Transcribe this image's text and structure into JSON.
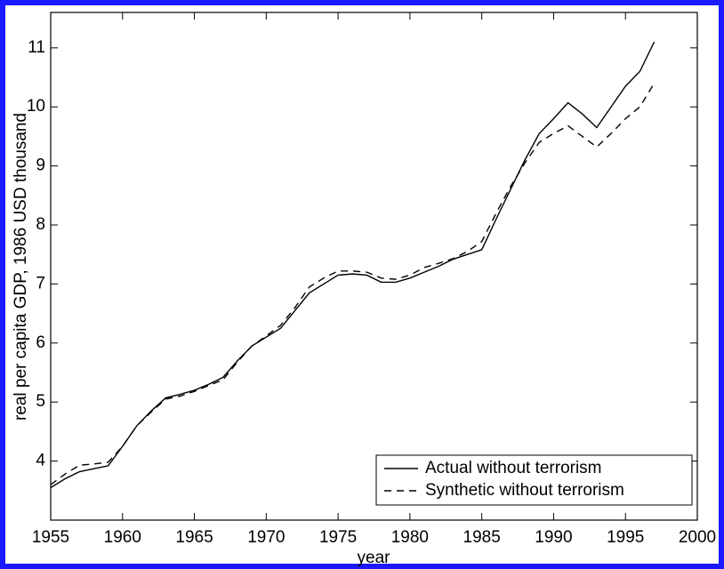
{
  "chart_data": {
    "type": "line",
    "xlabel": "year",
    "ylabel": "real per capita GDP, 1986 USD thousand",
    "x": [
      1955,
      1956,
      1957,
      1958,
      1959,
      1960,
      1961,
      1962,
      1963,
      1964,
      1965,
      1966,
      1967,
      1968,
      1969,
      1970,
      1971,
      1972,
      1973,
      1974,
      1975,
      1976,
      1977,
      1978,
      1979,
      1980,
      1981,
      1982,
      1983,
      1984,
      1985,
      1986,
      1987,
      1988,
      1989,
      1990,
      1991,
      1992,
      1993,
      1994,
      1995,
      1996,
      1997
    ],
    "series": [
      {
        "name": "Actual without terrorism",
        "color": "#000000",
        "linestyle": "solid",
        "values": [
          3.55,
          3.7,
          3.82,
          3.87,
          3.92,
          4.25,
          4.6,
          4.85,
          5.07,
          5.13,
          5.2,
          5.3,
          5.42,
          5.7,
          5.95,
          6.1,
          6.25,
          6.55,
          6.85,
          7.0,
          7.15,
          7.17,
          7.15,
          7.03,
          7.03,
          7.1,
          7.2,
          7.3,
          7.42,
          7.5,
          7.58,
          8.1,
          8.6,
          9.1,
          9.55,
          9.8,
          10.07,
          9.88,
          9.65,
          10.0,
          10.35,
          10.6,
          11.1
        ]
      },
      {
        "name": "Synthetic without terrorism",
        "color": "#000000",
        "linestyle": "dashed",
        "values": [
          3.6,
          3.78,
          3.93,
          3.95,
          3.98,
          4.25,
          4.6,
          4.83,
          5.05,
          5.1,
          5.18,
          5.28,
          5.38,
          5.68,
          5.95,
          6.12,
          6.3,
          6.6,
          6.95,
          7.1,
          7.22,
          7.22,
          7.2,
          7.1,
          7.08,
          7.15,
          7.28,
          7.35,
          7.43,
          7.55,
          7.72,
          8.2,
          8.65,
          9.05,
          9.4,
          9.55,
          9.68,
          9.5,
          9.32,
          9.55,
          9.8,
          10.0,
          10.4
        ]
      }
    ],
    "xlim": [
      1955,
      2000
    ],
    "xticks": [
      1955,
      1960,
      1965,
      1970,
      1975,
      1980,
      1985,
      1990,
      1995,
      2000
    ],
    "ylim": [
      3,
      11.6
    ],
    "yticks": [
      4,
      5,
      6,
      7,
      8,
      9,
      10,
      11
    ],
    "grid": false,
    "legend": "lower right"
  }
}
